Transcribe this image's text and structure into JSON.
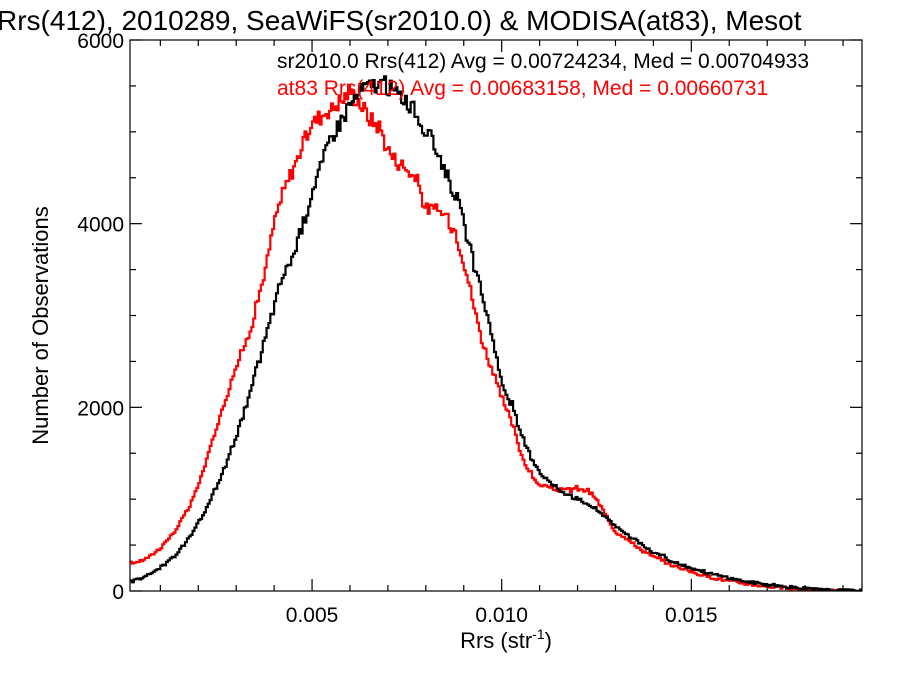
{
  "chart_data": {
    "type": "line",
    "title": "Rrs(412), 2010289, SeaWiFS(sr2010.0) & MODISA(at83), Mesot",
    "xlabel": "Rrs (str",
    "xlabel_sup": "-1",
    "xlabel_close": ")",
    "ylabel": "Number of Observations",
    "xlim": [
      0.0002,
      0.0195
    ],
    "ylim": [
      0,
      6000
    ],
    "x_ticks": [
      0.005,
      0.01,
      0.015
    ],
    "x_tick_labels": [
      "0.005",
      "0.010",
      "0.015"
    ],
    "y_ticks": [
      0,
      2000,
      4000,
      6000
    ],
    "y_tick_labels": [
      "0",
      "2000",
      "4000",
      "6000"
    ],
    "grid": false,
    "legend_position": "top-right",
    "series": [
      {
        "name": "sr2010.0",
        "color": "#000000",
        "annotation": "sr2010.0 Rrs(412) Avg = 0.00724234, Med = 0.00704933",
        "points": [
          [
            0.0002,
            100
          ],
          [
            0.0005,
            140
          ],
          [
            0.0008,
            190
          ],
          [
            0.001,
            250
          ],
          [
            0.0012,
            320
          ],
          [
            0.0015,
            430
          ],
          [
            0.0018,
            600
          ],
          [
            0.002,
            730
          ],
          [
            0.0022,
            880
          ],
          [
            0.0025,
            1150
          ],
          [
            0.0028,
            1450
          ],
          [
            0.003,
            1700
          ],
          [
            0.0033,
            2050
          ],
          [
            0.0035,
            2350
          ],
          [
            0.0038,
            2800
          ],
          [
            0.004,
            3100
          ],
          [
            0.0042,
            3400
          ],
          [
            0.0045,
            3650
          ],
          [
            0.0048,
            4050
          ],
          [
            0.005,
            4350
          ],
          [
            0.0053,
            4700
          ],
          [
            0.0055,
            4950
          ],
          [
            0.0058,
            5150
          ],
          [
            0.006,
            5300
          ],
          [
            0.0063,
            5450
          ],
          [
            0.0065,
            5500
          ],
          [
            0.0068,
            5520
          ],
          [
            0.007,
            5500
          ],
          [
            0.0072,
            5420
          ],
          [
            0.0075,
            5350
          ],
          [
            0.0078,
            5150
          ],
          [
            0.008,
            5000
          ],
          [
            0.0083,
            4800
          ],
          [
            0.0085,
            4600
          ],
          [
            0.0088,
            4300
          ],
          [
            0.009,
            4000
          ],
          [
            0.0093,
            3500
          ],
          [
            0.0095,
            3200
          ],
          [
            0.0098,
            2700
          ],
          [
            0.01,
            2250
          ],
          [
            0.0103,
            2000
          ],
          [
            0.0105,
            1700
          ],
          [
            0.0108,
            1450
          ],
          [
            0.011,
            1300
          ],
          [
            0.0113,
            1180
          ],
          [
            0.0115,
            1100
          ],
          [
            0.0118,
            1050
          ],
          [
            0.012,
            1000
          ],
          [
            0.0123,
            950
          ],
          [
            0.0125,
            880
          ],
          [
            0.0128,
            800
          ],
          [
            0.013,
            700
          ],
          [
            0.0133,
            630
          ],
          [
            0.0135,
            560
          ],
          [
            0.0138,
            470
          ],
          [
            0.014,
            420
          ],
          [
            0.0143,
            370
          ],
          [
            0.0145,
            320
          ],
          [
            0.0148,
            280
          ],
          [
            0.015,
            250
          ],
          [
            0.0155,
            190
          ],
          [
            0.016,
            140
          ],
          [
            0.0165,
            100
          ],
          [
            0.017,
            70
          ],
          [
            0.0175,
            45
          ],
          [
            0.018,
            25
          ],
          [
            0.0185,
            12
          ],
          [
            0.019,
            5
          ],
          [
            0.0195,
            2
          ]
        ]
      },
      {
        "name": "at83",
        "color": "#ff0000",
        "annotation": "at83 Rrs(412) Avg = 0.00683158, Med = 0.00660731",
        "points": [
          [
            0.0002,
            300
          ],
          [
            0.0005,
            330
          ],
          [
            0.0008,
            400
          ],
          [
            0.001,
            470
          ],
          [
            0.0012,
            560
          ],
          [
            0.0015,
            720
          ],
          [
            0.0018,
            950
          ],
          [
            0.002,
            1150
          ],
          [
            0.0022,
            1400
          ],
          [
            0.0025,
            1800
          ],
          [
            0.0028,
            2200
          ],
          [
            0.003,
            2450
          ],
          [
            0.0033,
            2750
          ],
          [
            0.0035,
            3050
          ],
          [
            0.0038,
            3550
          ],
          [
            0.004,
            4000
          ],
          [
            0.0042,
            4300
          ],
          [
            0.0045,
            4600
          ],
          [
            0.0048,
            4900
          ],
          [
            0.005,
            5100
          ],
          [
            0.0053,
            5200
          ],
          [
            0.0055,
            5250
          ],
          [
            0.0058,
            5350
          ],
          [
            0.006,
            5450
          ],
          [
            0.0063,
            5300
          ],
          [
            0.0065,
            5150
          ],
          [
            0.0068,
            5050
          ],
          [
            0.007,
            4800
          ],
          [
            0.0072,
            4700
          ],
          [
            0.0075,
            4600
          ],
          [
            0.0078,
            4450
          ],
          [
            0.008,
            4150
          ],
          [
            0.0083,
            4150
          ],
          [
            0.0085,
            4100
          ],
          [
            0.0088,
            3900
          ],
          [
            0.009,
            3600
          ],
          [
            0.0093,
            3050
          ],
          [
            0.0095,
            2700
          ],
          [
            0.0098,
            2350
          ],
          [
            0.01,
            2100
          ],
          [
            0.0103,
            1800
          ],
          [
            0.0105,
            1500
          ],
          [
            0.0108,
            1250
          ],
          [
            0.011,
            1150
          ],
          [
            0.0113,
            1120
          ],
          [
            0.0115,
            1100
          ],
          [
            0.0118,
            1100
          ],
          [
            0.012,
            1120
          ],
          [
            0.0123,
            1080
          ],
          [
            0.0125,
            1000
          ],
          [
            0.0128,
            780
          ],
          [
            0.013,
            650
          ],
          [
            0.0133,
            580
          ],
          [
            0.0135,
            500
          ],
          [
            0.0138,
            420
          ],
          [
            0.014,
            370
          ],
          [
            0.0143,
            320
          ],
          [
            0.0145,
            280
          ],
          [
            0.0148,
            240
          ],
          [
            0.015,
            210
          ],
          [
            0.0155,
            150
          ],
          [
            0.016,
            110
          ],
          [
            0.0165,
            75
          ],
          [
            0.017,
            50
          ],
          [
            0.0175,
            30
          ],
          [
            0.018,
            15
          ],
          [
            0.0185,
            7
          ],
          [
            0.019,
            3
          ],
          [
            0.0195,
            1
          ]
        ]
      }
    ]
  }
}
